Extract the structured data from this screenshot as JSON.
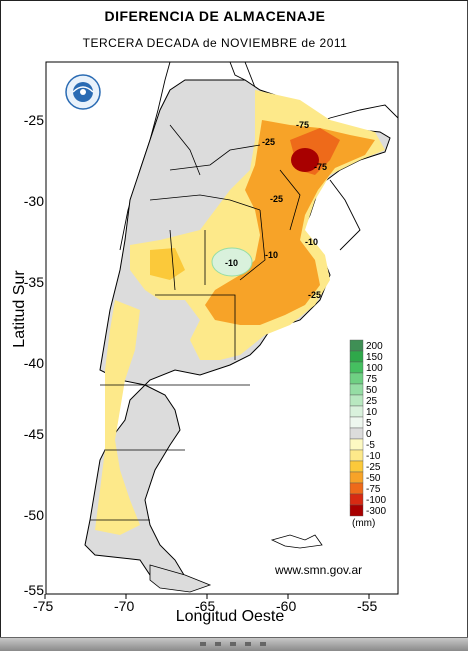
{
  "header": {
    "title": "DIFERENCIA DE ALMACENAJE",
    "subtitle": "TERCERA DECADA de NOVIEMBRE de 2011"
  },
  "axes": {
    "xlabel": "Longitud Oeste",
    "ylabel": "Latitud Sur",
    "xticks": [
      "-75",
      "-70",
      "-65",
      "-60",
      "-55"
    ],
    "yticks": [
      "-25",
      "-30",
      "-35",
      "-40",
      "-45",
      "-50",
      "-55"
    ]
  },
  "legend": {
    "unit": "(mm)",
    "items": [
      {
        "label": "200",
        "color": "#3f8f55"
      },
      {
        "label": "150",
        "color": "#2fa84a"
      },
      {
        "label": "100",
        "color": "#45bf60"
      },
      {
        "label": "75",
        "color": "#6fd083"
      },
      {
        "label": "50",
        "color": "#95dda4"
      },
      {
        "label": "25",
        "color": "#b8e8c0"
      },
      {
        "label": "10",
        "color": "#d9f1dc"
      },
      {
        "label": "5",
        "color": "#eef7ef"
      },
      {
        "label": "0",
        "color": "#dcdcdc"
      },
      {
        "label": "-5",
        "color": "#fdf9c2"
      },
      {
        "label": "-10",
        "color": "#fde98a"
      },
      {
        "label": "-25",
        "color": "#fbc93a"
      },
      {
        "label": "-50",
        "color": "#f7a328"
      },
      {
        "label": "-75",
        "color": "#ee6a1a"
      },
      {
        "label": "-100",
        "color": "#d72a12"
      },
      {
        "label": "-300",
        "color": "#a80000"
      }
    ]
  },
  "contour_labels": [
    "-75",
    "-75",
    "-25",
    "-25",
    "-10",
    "-10",
    "-10",
    "-25"
  ],
  "source": "www.smn.gov.ar"
}
